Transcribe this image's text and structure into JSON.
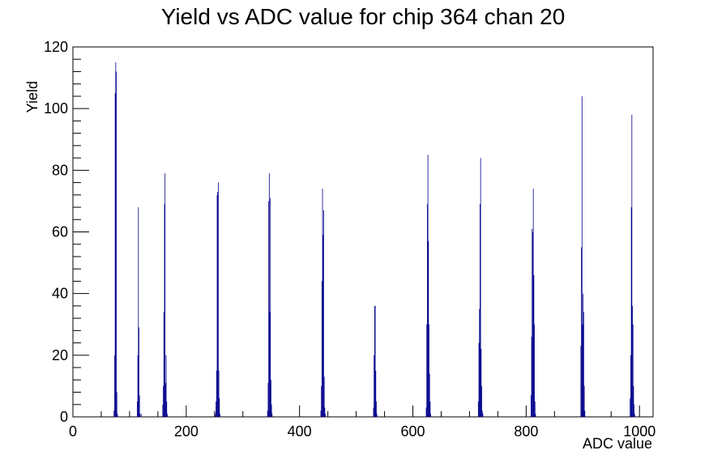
{
  "chart_data": {
    "type": "bar",
    "title": "Yield vs ADC value for chip 364 chan 20",
    "xlabel": "ADC value",
    "ylabel": "Yield",
    "xlim": [
      0,
      1024
    ],
    "ylim": [
      0,
      120
    ],
    "x_ticks": [
      0,
      200,
      400,
      600,
      800,
      1000
    ],
    "y_ticks": [
      0,
      20,
      40,
      60,
      80,
      100,
      120
    ],
    "grid": false,
    "line_color": "#00008b",
    "x": [
      72,
      73,
      74,
      75,
      76,
      77,
      78,
      113,
      114,
      115,
      116,
      117,
      118,
      119,
      120,
      158,
      159,
      160,
      161,
      162,
      163,
      164,
      165,
      166,
      167,
      251,
      252,
      253,
      254,
      255,
      256,
      257,
      258,
      259,
      343,
      344,
      345,
      346,
      347,
      348,
      349,
      350,
      351,
      437,
      438,
      439,
      440,
      441,
      442,
      443,
      444,
      445,
      530,
      531,
      532,
      533,
      534,
      535,
      536,
      623,
      624,
      625,
      626,
      627,
      628,
      629,
      630,
      631,
      632,
      715,
      716,
      717,
      718,
      719,
      720,
      721,
      722,
      723,
      808,
      809,
      810,
      811,
      812,
      813,
      814,
      815,
      816,
      896,
      897,
      898,
      899,
      900,
      901,
      902,
      903,
      983,
      984,
      985,
      986,
      987,
      988,
      989,
      990,
      991
    ],
    "values": [
      2,
      20,
      105,
      115,
      112,
      8,
      1,
      5,
      20,
      68,
      29,
      7,
      1,
      0,
      1,
      4,
      10,
      34,
      69,
      79,
      11,
      20,
      5,
      1,
      0,
      1,
      5,
      15,
      72,
      73,
      76,
      15,
      6,
      1,
      2,
      11,
      70,
      79,
      34,
      71,
      12,
      4,
      1,
      2,
      10,
      44,
      74,
      59,
      67,
      13,
      3,
      1,
      3,
      20,
      36,
      36,
      15,
      5,
      1,
      3,
      30,
      69,
      85,
      57,
      30,
      14,
      5,
      1,
      0,
      5,
      24,
      35,
      69,
      84,
      22,
      10,
      2,
      1,
      7,
      26,
      61,
      60,
      74,
      46,
      30,
      5,
      1,
      23,
      55,
      104,
      30,
      40,
      34,
      10,
      2,
      6,
      20,
      68,
      98,
      36,
      30,
      10,
      4,
      1
    ]
  }
}
